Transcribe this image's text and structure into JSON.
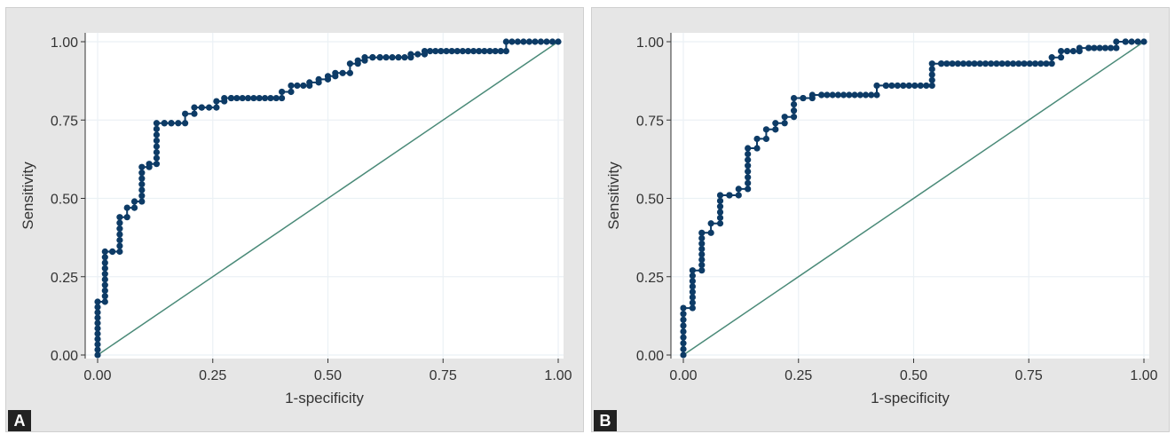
{
  "chart_data": [
    {
      "type": "line",
      "panel_label": "A",
      "xlabel": "1-specificity",
      "ylabel": "Sensitivity",
      "xlim": [
        0,
        1
      ],
      "ylim": [
        0,
        1
      ],
      "xticks": [
        "0.00",
        "0.25",
        "0.50",
        "0.75",
        "1.00"
      ],
      "yticks": [
        "0.00",
        "0.25",
        "0.50",
        "0.75",
        "1.00"
      ],
      "grid": true,
      "colors": {
        "roc": "#0d3b66",
        "diagonal": "#4a8a78",
        "plot_bg": "#ffffff",
        "panel_bg": "#e6e6e6",
        "grid": "#ebf1f5"
      },
      "series": [
        {
          "x": [
            0.0,
            0.0,
            0.016,
            0.016,
            0.032,
            0.032,
            0.048,
            0.048,
            0.064,
            0.064,
            0.08,
            0.08,
            0.096,
            0.096,
            0.112,
            0.112,
            0.128,
            0.128,
            0.145,
            0.145,
            0.16,
            0.16,
            0.19,
            0.19,
            0.21,
            0.21,
            0.226,
            0.226,
            0.258,
            0.258,
            0.275,
            0.275,
            0.29,
            0.29,
            0.4,
            0.4,
            0.42,
            0.42,
            0.46,
            0.46,
            0.48,
            0.48,
            0.5,
            0.5,
            0.516,
            0.516,
            0.548,
            0.548,
            0.565,
            0.565,
            0.58,
            0.58,
            0.597,
            0.597,
            0.613,
            0.613,
            0.68,
            0.68,
            0.71,
            0.71,
            0.887,
            0.887,
            1.0
          ],
          "y": [
            0.0,
            0.17,
            0.17,
            0.33,
            0.33,
            0.33,
            0.33,
            0.44,
            0.44,
            0.47,
            0.47,
            0.49,
            0.49,
            0.6,
            0.6,
            0.61,
            0.61,
            0.74,
            0.74,
            0.74,
            0.74,
            0.74,
            0.74,
            0.77,
            0.77,
            0.79,
            0.79,
            0.79,
            0.79,
            0.81,
            0.81,
            0.82,
            0.82,
            0.82,
            0.82,
            0.84,
            0.84,
            0.86,
            0.86,
            0.87,
            0.87,
            0.88,
            0.88,
            0.89,
            0.89,
            0.9,
            0.9,
            0.93,
            0.93,
            0.94,
            0.94,
            0.95,
            0.95,
            0.95,
            0.95,
            0.95,
            0.95,
            0.96,
            0.96,
            0.97,
            0.97,
            1.0,
            1.0
          ]
        }
      ]
    },
    {
      "type": "line",
      "panel_label": "B",
      "xlabel": "1-specificity",
      "ylabel": "Sensitivity",
      "xlim": [
        0,
        1
      ],
      "ylim": [
        0,
        1
      ],
      "xticks": [
        "0.00",
        "0.25",
        "0.50",
        "0.75",
        "1.00"
      ],
      "yticks": [
        "0.00",
        "0.25",
        "0.50",
        "0.75",
        "1.00"
      ],
      "grid": true,
      "colors": {
        "roc": "#0d3b66",
        "diagonal": "#4a8a78",
        "plot_bg": "#ffffff",
        "panel_bg": "#e6e6e6",
        "grid": "#ebf1f5"
      },
      "series": [
        {
          "x": [
            0.0,
            0.0,
            0.02,
            0.02,
            0.04,
            0.04,
            0.06,
            0.06,
            0.08,
            0.08,
            0.1,
            0.1,
            0.12,
            0.12,
            0.14,
            0.14,
            0.16,
            0.16,
            0.18,
            0.18,
            0.2,
            0.2,
            0.22,
            0.22,
            0.24,
            0.24,
            0.26,
            0.26,
            0.28,
            0.28,
            0.3,
            0.3,
            0.42,
            0.42,
            0.44,
            0.44,
            0.54,
            0.54,
            0.56,
            0.56,
            0.8,
            0.8,
            0.82,
            0.82,
            0.86,
            0.86,
            0.88,
            0.88,
            0.94,
            0.94,
            0.96,
            0.96,
            1.0
          ],
          "y": [
            0.0,
            0.15,
            0.15,
            0.27,
            0.27,
            0.39,
            0.39,
            0.42,
            0.42,
            0.51,
            0.51,
            0.51,
            0.51,
            0.53,
            0.53,
            0.66,
            0.66,
            0.69,
            0.69,
            0.72,
            0.72,
            0.74,
            0.74,
            0.76,
            0.76,
            0.82,
            0.82,
            0.82,
            0.82,
            0.83,
            0.83,
            0.83,
            0.83,
            0.86,
            0.86,
            0.86,
            0.86,
            0.93,
            0.93,
            0.93,
            0.93,
            0.95,
            0.95,
            0.97,
            0.97,
            0.98,
            0.98,
            0.98,
            0.98,
            1.0,
            1.0,
            1.0,
            1.0
          ]
        }
      ]
    }
  ]
}
